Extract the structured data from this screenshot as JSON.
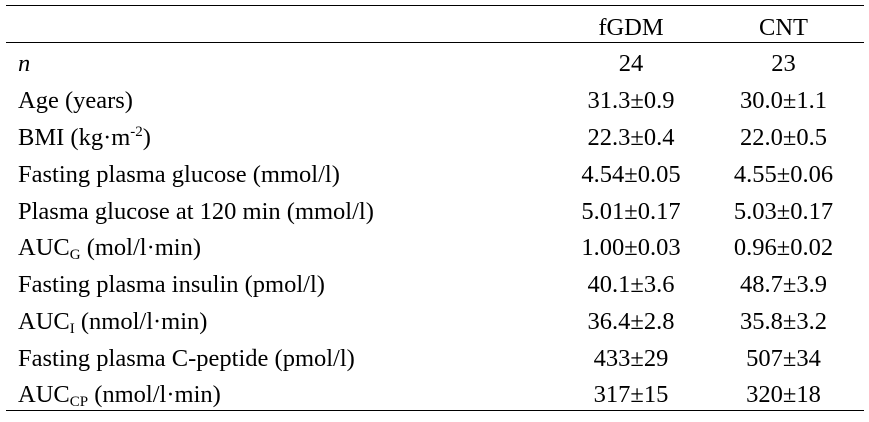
{
  "header": {
    "col1": "fGDM",
    "col2": "CNT"
  },
  "rows": [
    {
      "label": "n",
      "v1": "24",
      "v2": "23"
    },
    {
      "label": "Age (years)",
      "v1": "31.3±0.9",
      "v2": "30.0±1.1"
    },
    {
      "label_pre": "BMI (kg·m",
      "label_sup": "-2",
      "label_post": ")",
      "v1": "22.3±0.4",
      "v2": "22.0±0.5"
    },
    {
      "label": "Fasting plasma glucose (mmol/l)",
      "v1": "4.54±0.05",
      "v2": "4.55±0.06"
    },
    {
      "label": "Plasma glucose at 120 min (mmol/l)",
      "v1": "5.01±0.17",
      "v2": "5.03±0.17"
    },
    {
      "label_pre": "AUC",
      "label_sub": "G",
      "label_post": " (mol/l·min)",
      "v1": "1.00±0.03",
      "v2": "0.96±0.02"
    },
    {
      "label": "Fasting plasma insulin (pmol/l)",
      "v1": "40.1±3.6",
      "v2": "48.7±3.9"
    },
    {
      "label_pre": "AUC",
      "label_sub": "I",
      "label_post": " (nmol/l·min)",
      "v1": "36.4±2.8",
      "v2": "35.8±3.2"
    },
    {
      "label": "Fasting plasma C-peptide (pmol/l)",
      "v1": "433±29",
      "v2": "507±34"
    },
    {
      "label_pre": "AUC",
      "label_sub": "CP",
      "label_post": " (nmol/l·min)",
      "v1": "317±15",
      "v2": "320±18"
    }
  ]
}
